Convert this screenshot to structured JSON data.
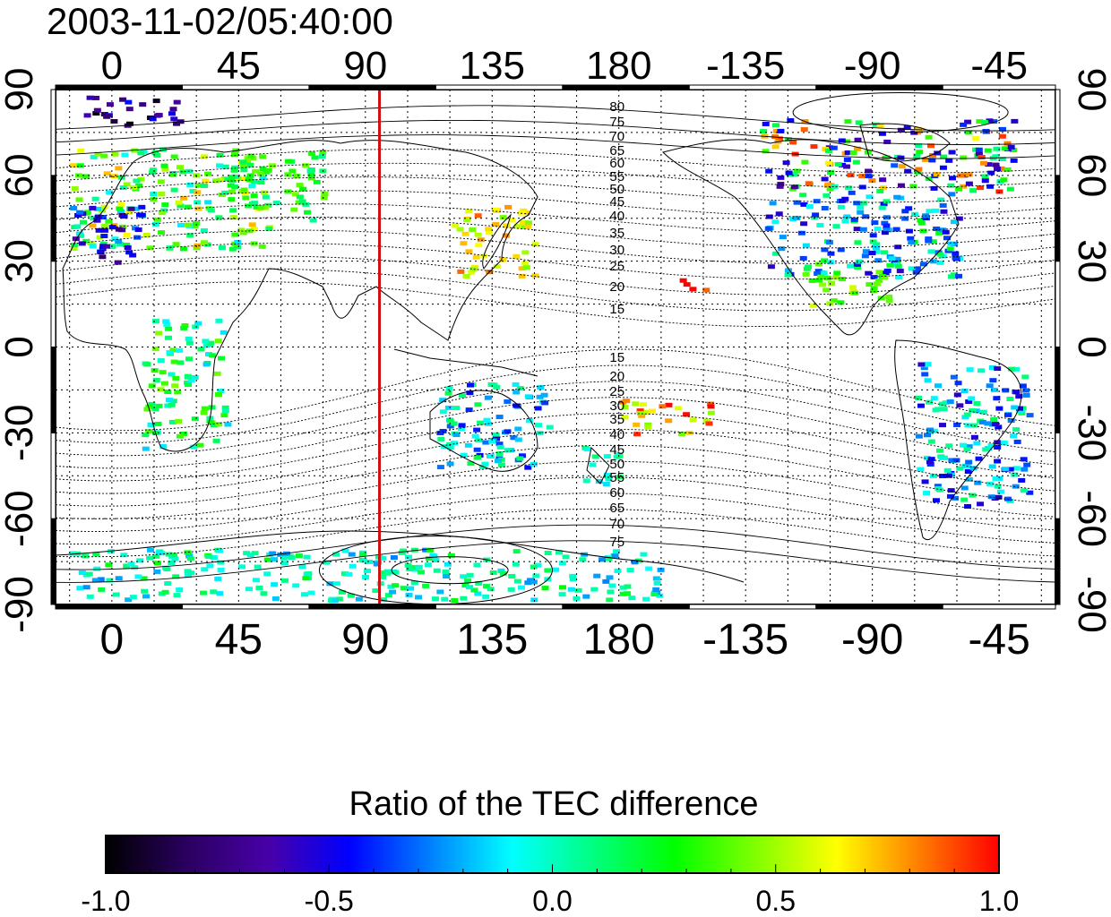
{
  "timestamp": "2003-11-02/05:40:00",
  "map": {
    "lon_ticks": [
      "0",
      "45",
      "90",
      "135",
      "180",
      "-135",
      "-90",
      "-45"
    ],
    "lon_tick_values": [
      0,
      45,
      90,
      135,
      180,
      225,
      270,
      315
    ],
    "lat_ticks": [
      "90",
      "60",
      "30",
      "0",
      "-30",
      "-60",
      "-90"
    ],
    "lat_tick_values": [
      90,
      60,
      30,
      0,
      -30,
      -60,
      -90
    ],
    "lon_range": [
      -20,
      335
    ],
    "lat_range": [
      -90,
      90
    ],
    "grid": "dotted",
    "marker_line": {
      "longitude": 95,
      "color": "#d01010"
    },
    "contour_labels_north": [
      "80",
      "75",
      "70",
      "65",
      "60",
      "55",
      "50",
      "45",
      "40",
      "35",
      "30",
      "25",
      "20",
      "15"
    ],
    "contour_labels_south": [
      "15",
      "20",
      "25",
      "30",
      "35",
      "40",
      "45",
      "50",
      "55",
      "60",
      "65",
      "70",
      "75"
    ],
    "contour_label_longitude": 180
  },
  "colorbar": {
    "title": "Ratio of the TEC difference",
    "tick_labels": [
      "-1.0",
      "-0.5",
      "0.0",
      "0.5",
      "1.0"
    ],
    "range": [
      -1.0,
      1.0
    ],
    "colors": [
      "#000000",
      "#2a0060",
      "#4800a8",
      "#0000ff",
      "#0080ff",
      "#00ffff",
      "#00ff80",
      "#00ff00",
      "#80ff00",
      "#ffff00",
      "#ff8000",
      "#ff0000"
    ]
  },
  "data_regions": [
    {
      "name": "europe",
      "lon": [
        -15,
        55
      ],
      "lat": [
        35,
        70
      ],
      "values": [
        0.6,
        0.3,
        0.0
      ]
    },
    {
      "name": "iberia-west",
      "lon": [
        -15,
        10
      ],
      "lat": [
        30,
        50
      ],
      "values": [
        -0.6,
        -0.4
      ]
    },
    {
      "name": "russia",
      "lon": [
        40,
        75
      ],
      "lat": [
        45,
        70
      ],
      "values": [
        0.2,
        0.3
      ]
    },
    {
      "name": "japan",
      "lon": [
        120,
        150
      ],
      "lat": [
        25,
        50
      ],
      "values": [
        0.6,
        0.7
      ]
    },
    {
      "name": "hawaii",
      "lon": [
        200,
        210
      ],
      "lat": [
        18,
        25
      ],
      "values": [
        1.0
      ]
    },
    {
      "name": "north-america",
      "lon": [
        230,
        300
      ],
      "lat": [
        25,
        55
      ],
      "values": [
        -0.4,
        -0.2,
        0.1
      ]
    },
    {
      "name": "canada-north",
      "lon": [
        230,
        320
      ],
      "lat": [
        55,
        80
      ],
      "values": [
        0.2,
        0.8,
        -0.5
      ]
    },
    {
      "name": "mexico",
      "lon": [
        245,
        275
      ],
      "lat": [
        15,
        30
      ],
      "values": [
        0.5,
        0.3
      ]
    },
    {
      "name": "australia",
      "lon": [
        115,
        155
      ],
      "lat": [
        -42,
        -12
      ],
      "values": [
        -0.3,
        0.0
      ]
    },
    {
      "name": "new-zealand",
      "lon": [
        165,
        180
      ],
      "lat": [
        -48,
        -34
      ],
      "values": [
        0.0
      ]
    },
    {
      "name": "south-america",
      "lon": [
        285,
        325
      ],
      "lat": [
        -55,
        -5
      ],
      "values": [
        0.0,
        -0.4
      ]
    },
    {
      "name": "africa",
      "lon": [
        10,
        40
      ],
      "lat": [
        -35,
        10
      ],
      "values": [
        0.0,
        0.3
      ]
    },
    {
      "name": "south-pacific",
      "lon": [
        180,
        215
      ],
      "lat": [
        -30,
        -18
      ],
      "values": [
        0.6,
        0.9
      ]
    },
    {
      "name": "antarctica",
      "lon": [
        -15,
        195
      ],
      "lat": [
        -88,
        -70
      ],
      "values": [
        -0.1,
        0.1
      ]
    },
    {
      "name": "arctic-europe",
      "lon": [
        -10,
        25
      ],
      "lat": [
        78,
        88
      ],
      "values": [
        -0.9,
        -0.6
      ]
    }
  ]
}
